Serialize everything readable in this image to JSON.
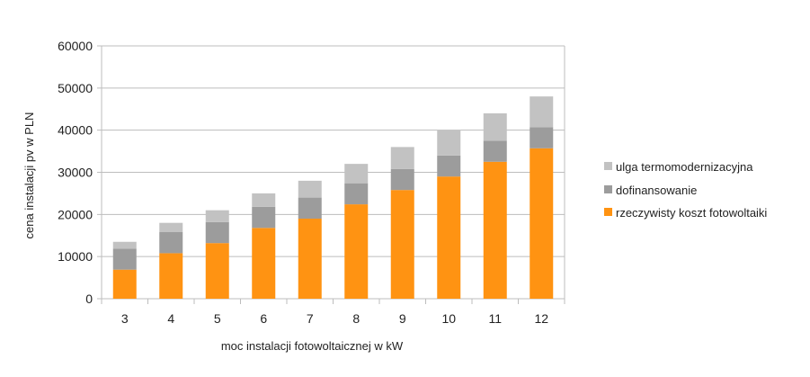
{
  "chart_data": {
    "type": "bar",
    "stacked": true,
    "categories": [
      "3",
      "4",
      "5",
      "6",
      "7",
      "8",
      "9",
      "10",
      "11",
      "12"
    ],
    "series": [
      {
        "name": "rzeczywisty koszt fotowoltaiki",
        "color": "#ff9312",
        "values": [
          6900,
          10800,
          13200,
          16800,
          19000,
          22400,
          25800,
          29000,
          32500,
          35700
        ]
      },
      {
        "name": "dofinansowanie",
        "color": "#9c9c9c",
        "values": [
          5000,
          5000,
          5000,
          5000,
          5000,
          5000,
          5000,
          5000,
          5000,
          5000
        ]
      },
      {
        "name": "ulga termomodernizacyjna",
        "color": "#c2c2c2",
        "values": [
          1600,
          2200,
          2800,
          3200,
          4000,
          4600,
          5200,
          6000,
          6500,
          7300
        ]
      }
    ],
    "xlabel": "moc instalacji fotowoltaicznej w kW",
    "ylabel": "cena instalacji pv w PLN",
    "ylim": [
      0,
      60000
    ],
    "yticks": [
      "0",
      "10000",
      "20000",
      "30000",
      "40000",
      "50000",
      "60000"
    ],
    "grid": true,
    "legend_position": "right"
  }
}
